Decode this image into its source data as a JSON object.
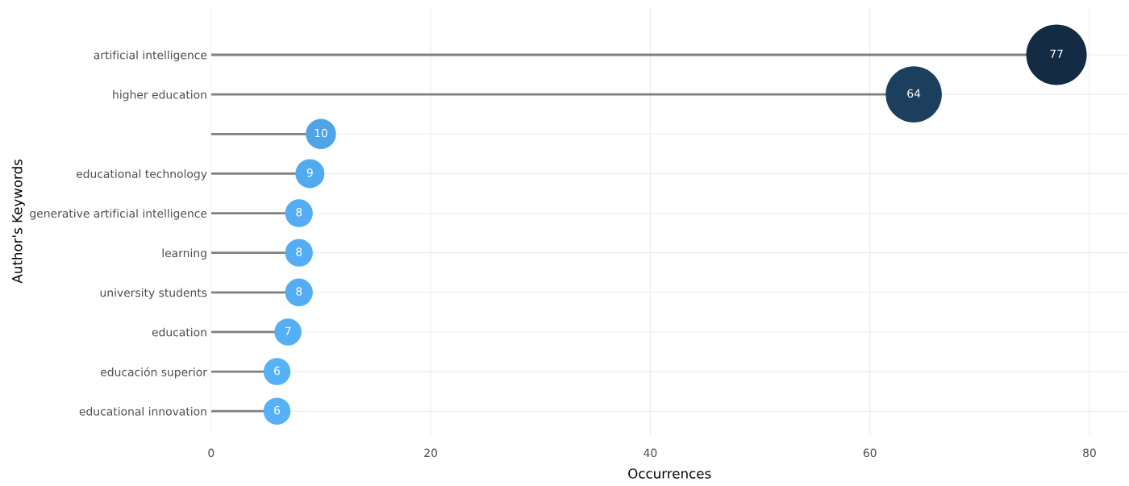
{
  "chart_data": {
    "type": "lollipop",
    "orientation": "horizontal",
    "xlabel": "Occurrences",
    "ylabel": "Author's Keywords",
    "categories": [
      "artificial intelligence",
      "higher education",
      null,
      "educational technology",
      "generative artificial intelligence",
      "learning",
      "university students",
      "education",
      "educación superior",
      "educational innovation"
    ],
    "values": [
      77,
      64,
      10,
      9,
      8,
      8,
      8,
      7,
      6,
      6
    ],
    "colors": [
      "#132b43",
      "#1d3f5e",
      "#4ea4e6",
      "#52aaee",
      "#54adf2",
      "#54adf2",
      "#54adf2",
      "#55aff4",
      "#56b1f7",
      "#56b1f7"
    ],
    "sizes": [
      1,
      0.86,
      0.25,
      0.23,
      0.21,
      0.21,
      0.21,
      0.2,
      0.2,
      0.2
    ],
    "xlim": [
      0,
      83.5
    ],
    "xticks": [
      0,
      20,
      40,
      60,
      80
    ],
    "grid": true,
    "data_labels": true
  }
}
